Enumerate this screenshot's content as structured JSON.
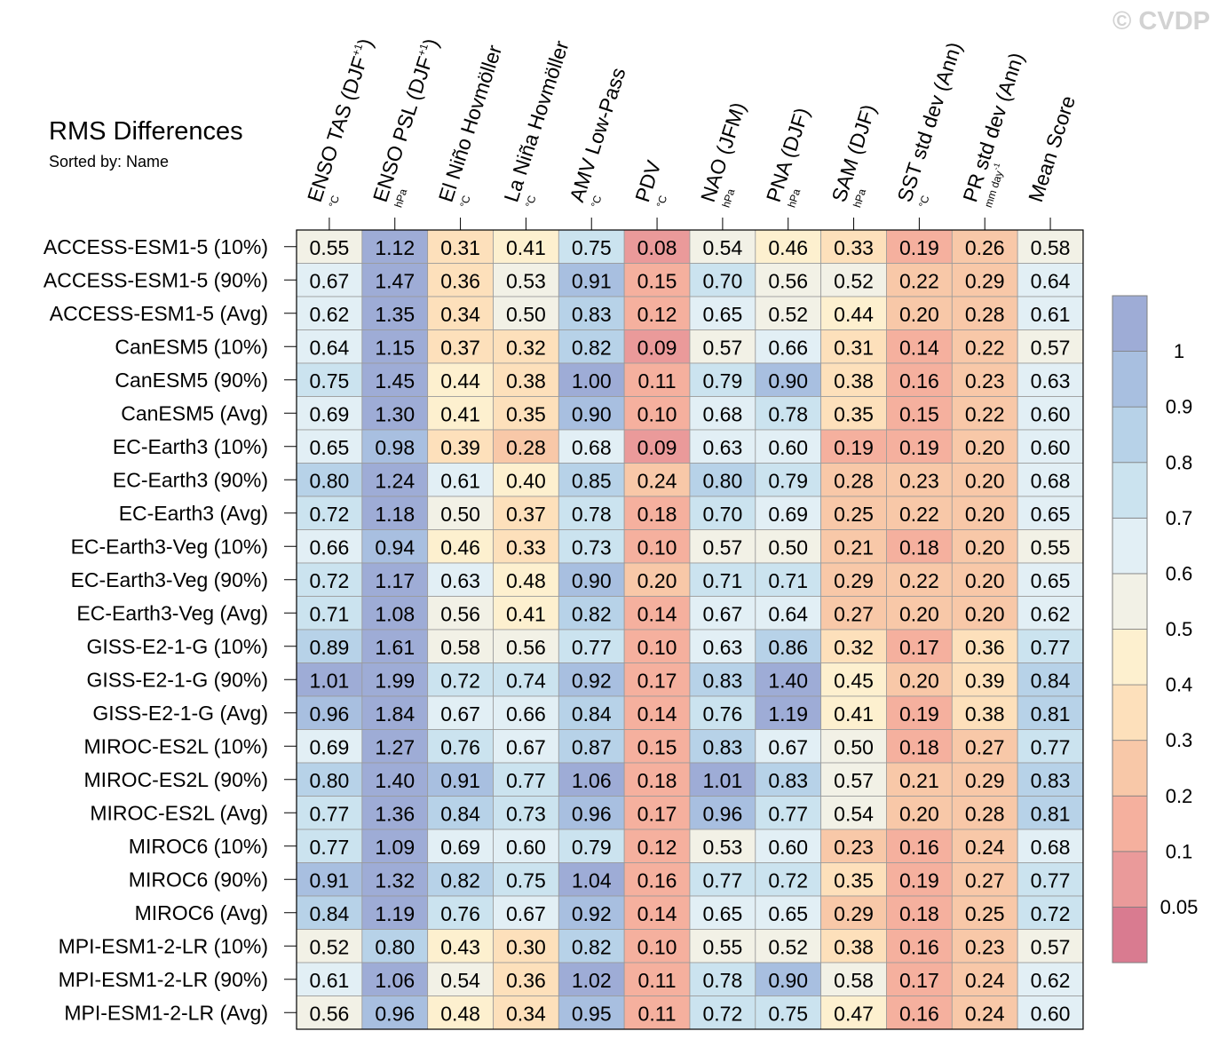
{
  "watermark": "© CVDP",
  "chart_data": {
    "type": "heatmap",
    "title": "RMS Differences",
    "subtitle": "Sorted by: Name",
    "columns": [
      {
        "label": "ENSO TAS (DJF",
        "sup": "+1",
        "close": ")",
        "unit": "°C"
      },
      {
        "label": "ENSO PSL (DJF",
        "sup": "+1",
        "close": ")",
        "unit": "hPa"
      },
      {
        "label": "El Niño Hovmöller",
        "unit": "°C"
      },
      {
        "label": "La Niña Hovmöller",
        "unit": "°C"
      },
      {
        "label": "AMV Low-Pass",
        "unit": "°C"
      },
      {
        "label": "PDV",
        "unit": "°C"
      },
      {
        "label": "NAO (JFM)",
        "unit": "hPa"
      },
      {
        "label": "PNA (DJF)",
        "unit": "hPa"
      },
      {
        "label": "SAM (DJF)",
        "unit": "hPa"
      },
      {
        "label": "SST std dev (Ann)",
        "unit": "°C"
      },
      {
        "label": "PR std dev (Ann)",
        "unit": "mm day",
        "unit_sup": "-1"
      },
      {
        "label": "Mean Score",
        "unit": ""
      }
    ],
    "rows": [
      "ACCESS-ESM1-5 (10%)",
      "ACCESS-ESM1-5 (90%)",
      "ACCESS-ESM1-5 (Avg)",
      "CanESM5 (10%)",
      "CanESM5 (90%)",
      "CanESM5 (Avg)",
      "EC-Earth3 (10%)",
      "EC-Earth3 (90%)",
      "EC-Earth3 (Avg)",
      "EC-Earth3-Veg (10%)",
      "EC-Earth3-Veg (90%)",
      "EC-Earth3-Veg (Avg)",
      "GISS-E2-1-G (10%)",
      "GISS-E2-1-G (90%)",
      "GISS-E2-1-G (Avg)",
      "MIROC-ES2L (10%)",
      "MIROC-ES2L (90%)",
      "MIROC-ES2L (Avg)",
      "MIROC6 (10%)",
      "MIROC6 (90%)",
      "MIROC6 (Avg)",
      "MPI-ESM1-2-LR (10%)",
      "MPI-ESM1-2-LR (90%)",
      "MPI-ESM1-2-LR (Avg)"
    ],
    "values": [
      [
        "0.55",
        "1.12",
        "0.31",
        "0.41",
        "0.75",
        "0.08",
        "0.54",
        "0.46",
        "0.33",
        "0.19",
        "0.26",
        "0.58"
      ],
      [
        "0.67",
        "1.47",
        "0.36",
        "0.53",
        "0.91",
        "0.15",
        "0.70",
        "0.56",
        "0.52",
        "0.22",
        "0.29",
        "0.64"
      ],
      [
        "0.62",
        "1.35",
        "0.34",
        "0.50",
        "0.83",
        "0.12",
        "0.65",
        "0.52",
        "0.44",
        "0.20",
        "0.28",
        "0.61"
      ],
      [
        "0.64",
        "1.15",
        "0.37",
        "0.32",
        "0.82",
        "0.09",
        "0.57",
        "0.66",
        "0.31",
        "0.14",
        "0.22",
        "0.57"
      ],
      [
        "0.75",
        "1.45",
        "0.44",
        "0.38",
        "1.00",
        "0.11",
        "0.79",
        "0.90",
        "0.38",
        "0.16",
        "0.23",
        "0.63"
      ],
      [
        "0.69",
        "1.30",
        "0.41",
        "0.35",
        "0.90",
        "0.10",
        "0.68",
        "0.78",
        "0.35",
        "0.15",
        "0.22",
        "0.60"
      ],
      [
        "0.65",
        "0.98",
        "0.39",
        "0.28",
        "0.68",
        "0.09",
        "0.63",
        "0.60",
        "0.19",
        "0.19",
        "0.20",
        "0.60"
      ],
      [
        "0.80",
        "1.24",
        "0.61",
        "0.40",
        "0.85",
        "0.24",
        "0.80",
        "0.79",
        "0.28",
        "0.23",
        "0.20",
        "0.68"
      ],
      [
        "0.72",
        "1.18",
        "0.50",
        "0.37",
        "0.78",
        "0.18",
        "0.70",
        "0.69",
        "0.25",
        "0.22",
        "0.20",
        "0.65"
      ],
      [
        "0.66",
        "0.94",
        "0.46",
        "0.33",
        "0.73",
        "0.10",
        "0.57",
        "0.50",
        "0.21",
        "0.18",
        "0.20",
        "0.55"
      ],
      [
        "0.72",
        "1.17",
        "0.63",
        "0.48",
        "0.90",
        "0.20",
        "0.71",
        "0.71",
        "0.29",
        "0.22",
        "0.20",
        "0.65"
      ],
      [
        "0.71",
        "1.08",
        "0.56",
        "0.41",
        "0.82",
        "0.14",
        "0.67",
        "0.64",
        "0.27",
        "0.20",
        "0.20",
        "0.62"
      ],
      [
        "0.89",
        "1.61",
        "0.58",
        "0.56",
        "0.77",
        "0.10",
        "0.63",
        "0.86",
        "0.32",
        "0.17",
        "0.36",
        "0.77"
      ],
      [
        "1.01",
        "1.99",
        "0.72",
        "0.74",
        "0.92",
        "0.17",
        "0.83",
        "1.40",
        "0.45",
        "0.20",
        "0.39",
        "0.84"
      ],
      [
        "0.96",
        "1.84",
        "0.67",
        "0.66",
        "0.84",
        "0.14",
        "0.76",
        "1.19",
        "0.41",
        "0.19",
        "0.38",
        "0.81"
      ],
      [
        "0.69",
        "1.27",
        "0.76",
        "0.67",
        "0.87",
        "0.15",
        "0.83",
        "0.67",
        "0.50",
        "0.18",
        "0.27",
        "0.77"
      ],
      [
        "0.80",
        "1.40",
        "0.91",
        "0.77",
        "1.06",
        "0.18",
        "1.01",
        "0.83",
        "0.57",
        "0.21",
        "0.29",
        "0.83"
      ],
      [
        "0.77",
        "1.36",
        "0.84",
        "0.73",
        "0.96",
        "0.17",
        "0.96",
        "0.77",
        "0.54",
        "0.20",
        "0.28",
        "0.81"
      ],
      [
        "0.77",
        "1.09",
        "0.69",
        "0.60",
        "0.79",
        "0.12",
        "0.53",
        "0.60",
        "0.23",
        "0.16",
        "0.24",
        "0.68"
      ],
      [
        "0.91",
        "1.32",
        "0.82",
        "0.75",
        "1.04",
        "0.16",
        "0.77",
        "0.72",
        "0.35",
        "0.19",
        "0.27",
        "0.77"
      ],
      [
        "0.84",
        "1.19",
        "0.76",
        "0.67",
        "0.92",
        "0.14",
        "0.65",
        "0.65",
        "0.29",
        "0.18",
        "0.25",
        "0.72"
      ],
      [
        "0.52",
        "0.80",
        "0.43",
        "0.30",
        "0.82",
        "0.10",
        "0.55",
        "0.52",
        "0.38",
        "0.16",
        "0.23",
        "0.57"
      ],
      [
        "0.61",
        "1.06",
        "0.54",
        "0.36",
        "1.02",
        "0.11",
        "0.78",
        "0.90",
        "0.58",
        "0.17",
        "0.24",
        "0.62"
      ],
      [
        "0.56",
        "0.96",
        "0.48",
        "0.34",
        "0.95",
        "0.11",
        "0.72",
        "0.75",
        "0.47",
        "0.16",
        "0.24",
        "0.60"
      ]
    ],
    "colorbar": {
      "boundaries": [
        0.05,
        0.1,
        0.2,
        0.3,
        0.4,
        0.5,
        0.6,
        0.7,
        0.8,
        0.9,
        1
      ],
      "boundary_labels": [
        "0.05",
        "0.1",
        "0.2",
        "0.3",
        "0.4",
        "0.5",
        "0.6",
        "0.7",
        "0.8",
        "0.9",
        "1"
      ],
      "colors": [
        "#d97b90",
        "#ea9a9a",
        "#f5b09e",
        "#f8c8a8",
        "#fde0bb",
        "#fdf0cf",
        "#f2f1e6",
        "#e2eff5",
        "#cbe3ef",
        "#b7d2e8",
        "#a8bfe0",
        "#9eacd6"
      ]
    }
  }
}
